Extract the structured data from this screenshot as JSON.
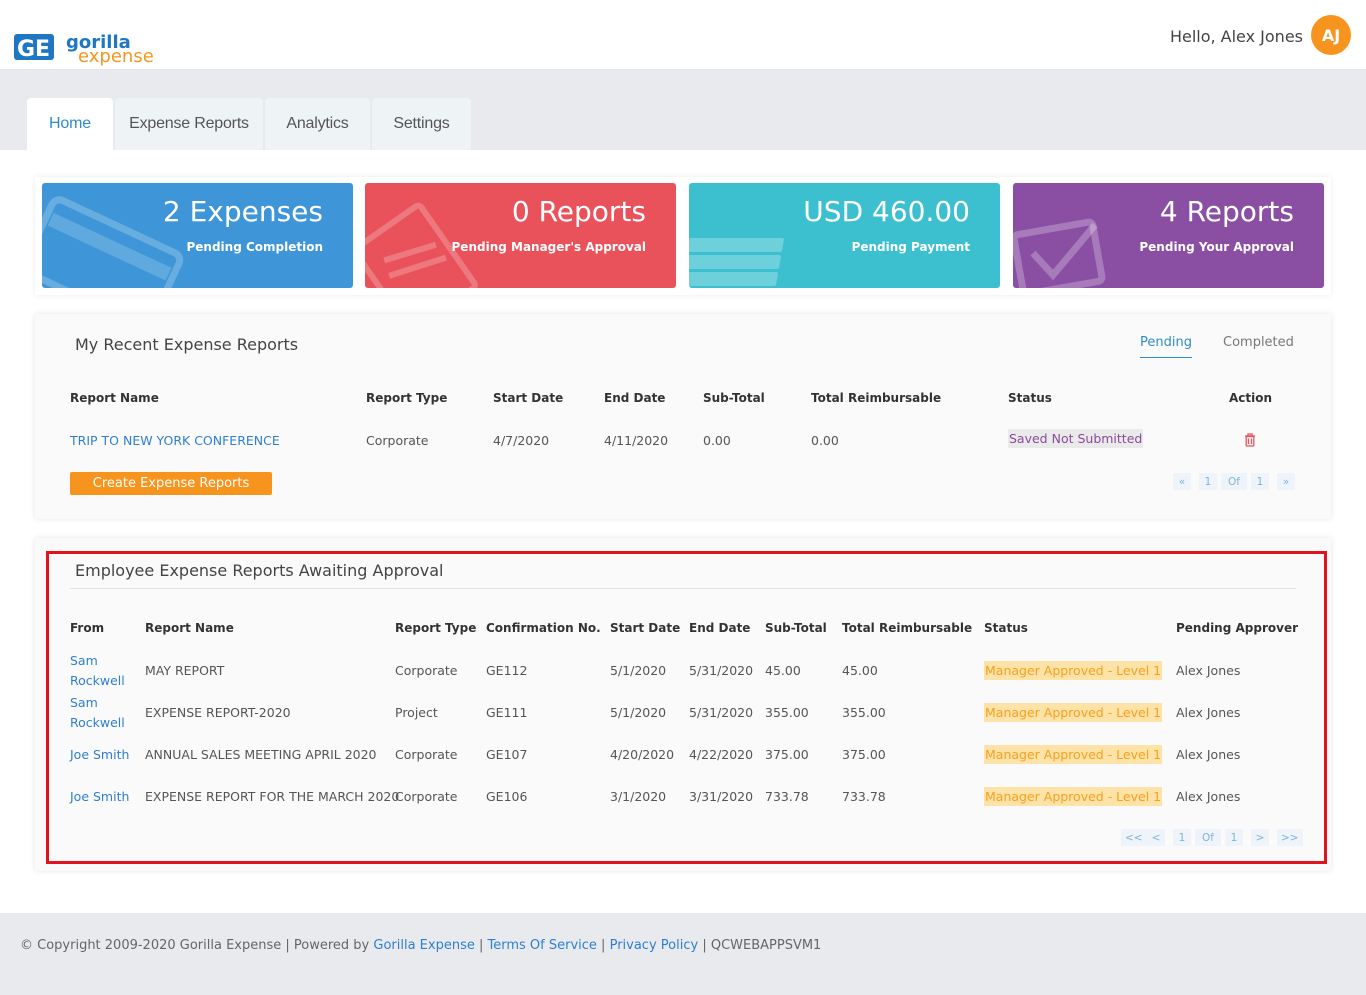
{
  "app": {
    "logo_word1": "gorilla",
    "logo_word2": "expense",
    "logo_mark": "GE",
    "greeting": "Hello, Alex Jones",
    "avatar_initials": "AJ"
  },
  "tabs": [
    {
      "label": "Home",
      "active": true
    },
    {
      "label": "Expense Reports",
      "active": false
    },
    {
      "label": "Analytics",
      "active": false
    },
    {
      "label": "Settings",
      "active": false
    }
  ],
  "cards": [
    {
      "big": "2 Expenses",
      "small": "Pending Completion",
      "color": "#3e96d8",
      "icon": "credit-card-icon"
    },
    {
      "big": "0 Reports",
      "small": "Pending Manager's Approval",
      "color": "#e9525b",
      "icon": "document-icon"
    },
    {
      "big": "USD 460.00",
      "small": "Pending Payment",
      "color": "#3cc0cf",
      "icon": "money-stack-icon"
    },
    {
      "big": "4 Reports",
      "small": "Pending Your Approval",
      "color": "#8a4ea3",
      "icon": "checkmark-icon"
    }
  ],
  "recent": {
    "title": "My Recent Expense Reports",
    "subtabs": {
      "pending": "Pending",
      "completed": "Completed"
    },
    "headers": {
      "report_name": "Report Name",
      "report_type": "Report Type",
      "start_date": "Start Date",
      "end_date": "End Date",
      "sub_total": "Sub-Total",
      "total_reimbursable": "Total Reimbursable",
      "status": "Status",
      "action": "Action"
    },
    "rows": [
      {
        "report_name": "TRIP TO NEW YORK CONFERENCE",
        "report_type": "Corporate",
        "start_date": "4/7/2020",
        "end_date": "4/11/2020",
        "sub_total": "0.00",
        "total_reimbursable": "0.00",
        "status": "Saved Not Submitted"
      }
    ],
    "create_button": "Create Expense Reports",
    "pagination": {
      "first": "«",
      "page": "1",
      "of": "Of",
      "total": "1",
      "last": "»"
    }
  },
  "awaiting": {
    "title": "Employee Expense Reports Awaiting Approval",
    "headers": {
      "from": "From",
      "report_name": "Report Name",
      "report_type": "Report Type",
      "confirmation_no": "Confirmation No.",
      "start_date": "Start Date",
      "end_date": "End Date",
      "sub_total": "Sub-Total",
      "total_reimbursable": "Total Reimbursable",
      "status": "Status",
      "pending_approver": "Pending Approver"
    },
    "rows": [
      {
        "from_line1": "Sam",
        "from_line2": "Rockwell",
        "report_name": "MAY REPORT",
        "report_type": "Corporate",
        "confirmation_no": "GE112",
        "start_date": "5/1/2020",
        "end_date": "5/31/2020",
        "sub_total": "45.00",
        "total_reimbursable": "45.00",
        "status": "Manager Approved - Level 1",
        "pending_approver": "Alex Jones"
      },
      {
        "from_line1": "Sam",
        "from_line2": "Rockwell",
        "report_name": "EXPENSE REPORT-2020",
        "report_type": "Project",
        "confirmation_no": "GE111",
        "start_date": "5/1/2020",
        "end_date": "5/31/2020",
        "sub_total": "355.00",
        "total_reimbursable": "355.00",
        "status": "Manager Approved - Level 1",
        "pending_approver": "Alex Jones"
      },
      {
        "from_line1": "Joe Smith",
        "from_line2": "",
        "report_name": "ANNUAL SALES MEETING APRIL 2020",
        "report_type": "Corporate",
        "confirmation_no": "GE107",
        "start_date": "4/20/2020",
        "end_date": "4/22/2020",
        "sub_total": "375.00",
        "total_reimbursable": "375.00",
        "status": "Manager Approved - Level 1",
        "pending_approver": "Alex Jones"
      },
      {
        "from_line1": "Joe Smith",
        "from_line2": "",
        "report_name": "EXPENSE REPORT FOR THE MARCH 2020",
        "report_type": "Corporate",
        "confirmation_no": "GE106",
        "start_date": "3/1/2020",
        "end_date": "3/31/2020",
        "sub_total": "733.78",
        "total_reimbursable": "733.78",
        "status": "Manager Approved - Level 1",
        "pending_approver": "Alex Jones"
      }
    ],
    "pagination": {
      "first": "<<",
      "prev": "<",
      "page": "1",
      "of": "Of",
      "total": "1",
      "next": ">",
      "last": ">>"
    }
  },
  "footer": {
    "copyright": "© Copyright 2009-2020 Gorilla Expense | Powered by ",
    "powered_link": "Gorilla Expense",
    "sep1": " | ",
    "terms": "Terms Of Service",
    "sep2": " | ",
    "privacy": "Privacy Policy",
    "server": " | QCWEBAPPSVM1"
  }
}
